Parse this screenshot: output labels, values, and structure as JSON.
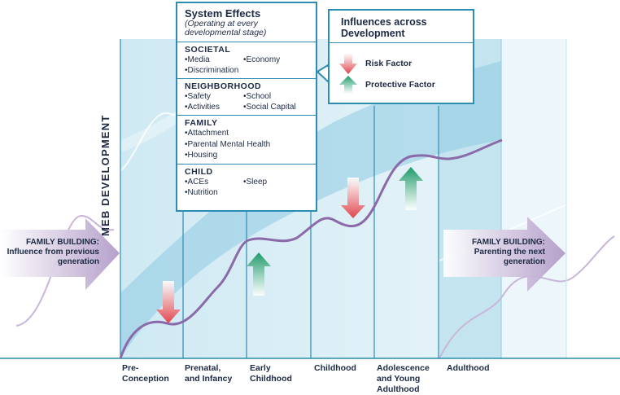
{
  "side_title": "MEB DEVELOPMENT",
  "system_effects": {
    "title": "System Effects",
    "subtitle": "(Operating at every\ndevelopmental stage)",
    "levels": [
      {
        "name": "SOCIETAL",
        "items": [
          "•Media",
          "•Economy",
          "•Discrimination"
        ]
      },
      {
        "name": "NEIGHBORHOOD",
        "items": [
          "•Safety",
          "•School",
          "•Activities",
          "•Social Capital"
        ]
      },
      {
        "name": "FAMILY",
        "items": [
          "•Attachment",
          "•Parental Mental Health",
          "•Housing"
        ]
      },
      {
        "name": "CHILD",
        "items": [
          "•ACEs",
          "•Sleep",
          "•Nutrition"
        ]
      }
    ]
  },
  "influences": {
    "title": "Influences across Development",
    "risk_label": "Risk Factor",
    "protective_label": "Protective Factor"
  },
  "family_building_left": {
    "title": "FAMILY BUILDING:",
    "text": "Influence from previous generation"
  },
  "family_building_right": {
    "title": "FAMILY BUILDING:",
    "text": "Parenting the next generation"
  },
  "stages": [
    {
      "label": "Pre-\nConception"
    },
    {
      "label": "Prenatal,\nand Infancy"
    },
    {
      "label": "Early\nChildhood"
    },
    {
      "label": "Childhood"
    },
    {
      "label": "Adolescence\nand Young\nAdulthood"
    },
    {
      "label": "Adulthood"
    }
  ],
  "colors": {
    "panel_light": "#d9eef6",
    "panel_mid": "#b9dfee",
    "band": "#8ecbe2",
    "curve": "#8a6aa8",
    "divider": "#2d8cb4",
    "risk_arrow": "#e0454c",
    "protective_arrow": "#1e9a6a",
    "family_arrow": "#bba6cf",
    "text": "#1d2a44"
  },
  "icons": [
    "risk-arrow-icon",
    "protective-arrow-icon",
    "family-building-arrow-icon"
  ]
}
